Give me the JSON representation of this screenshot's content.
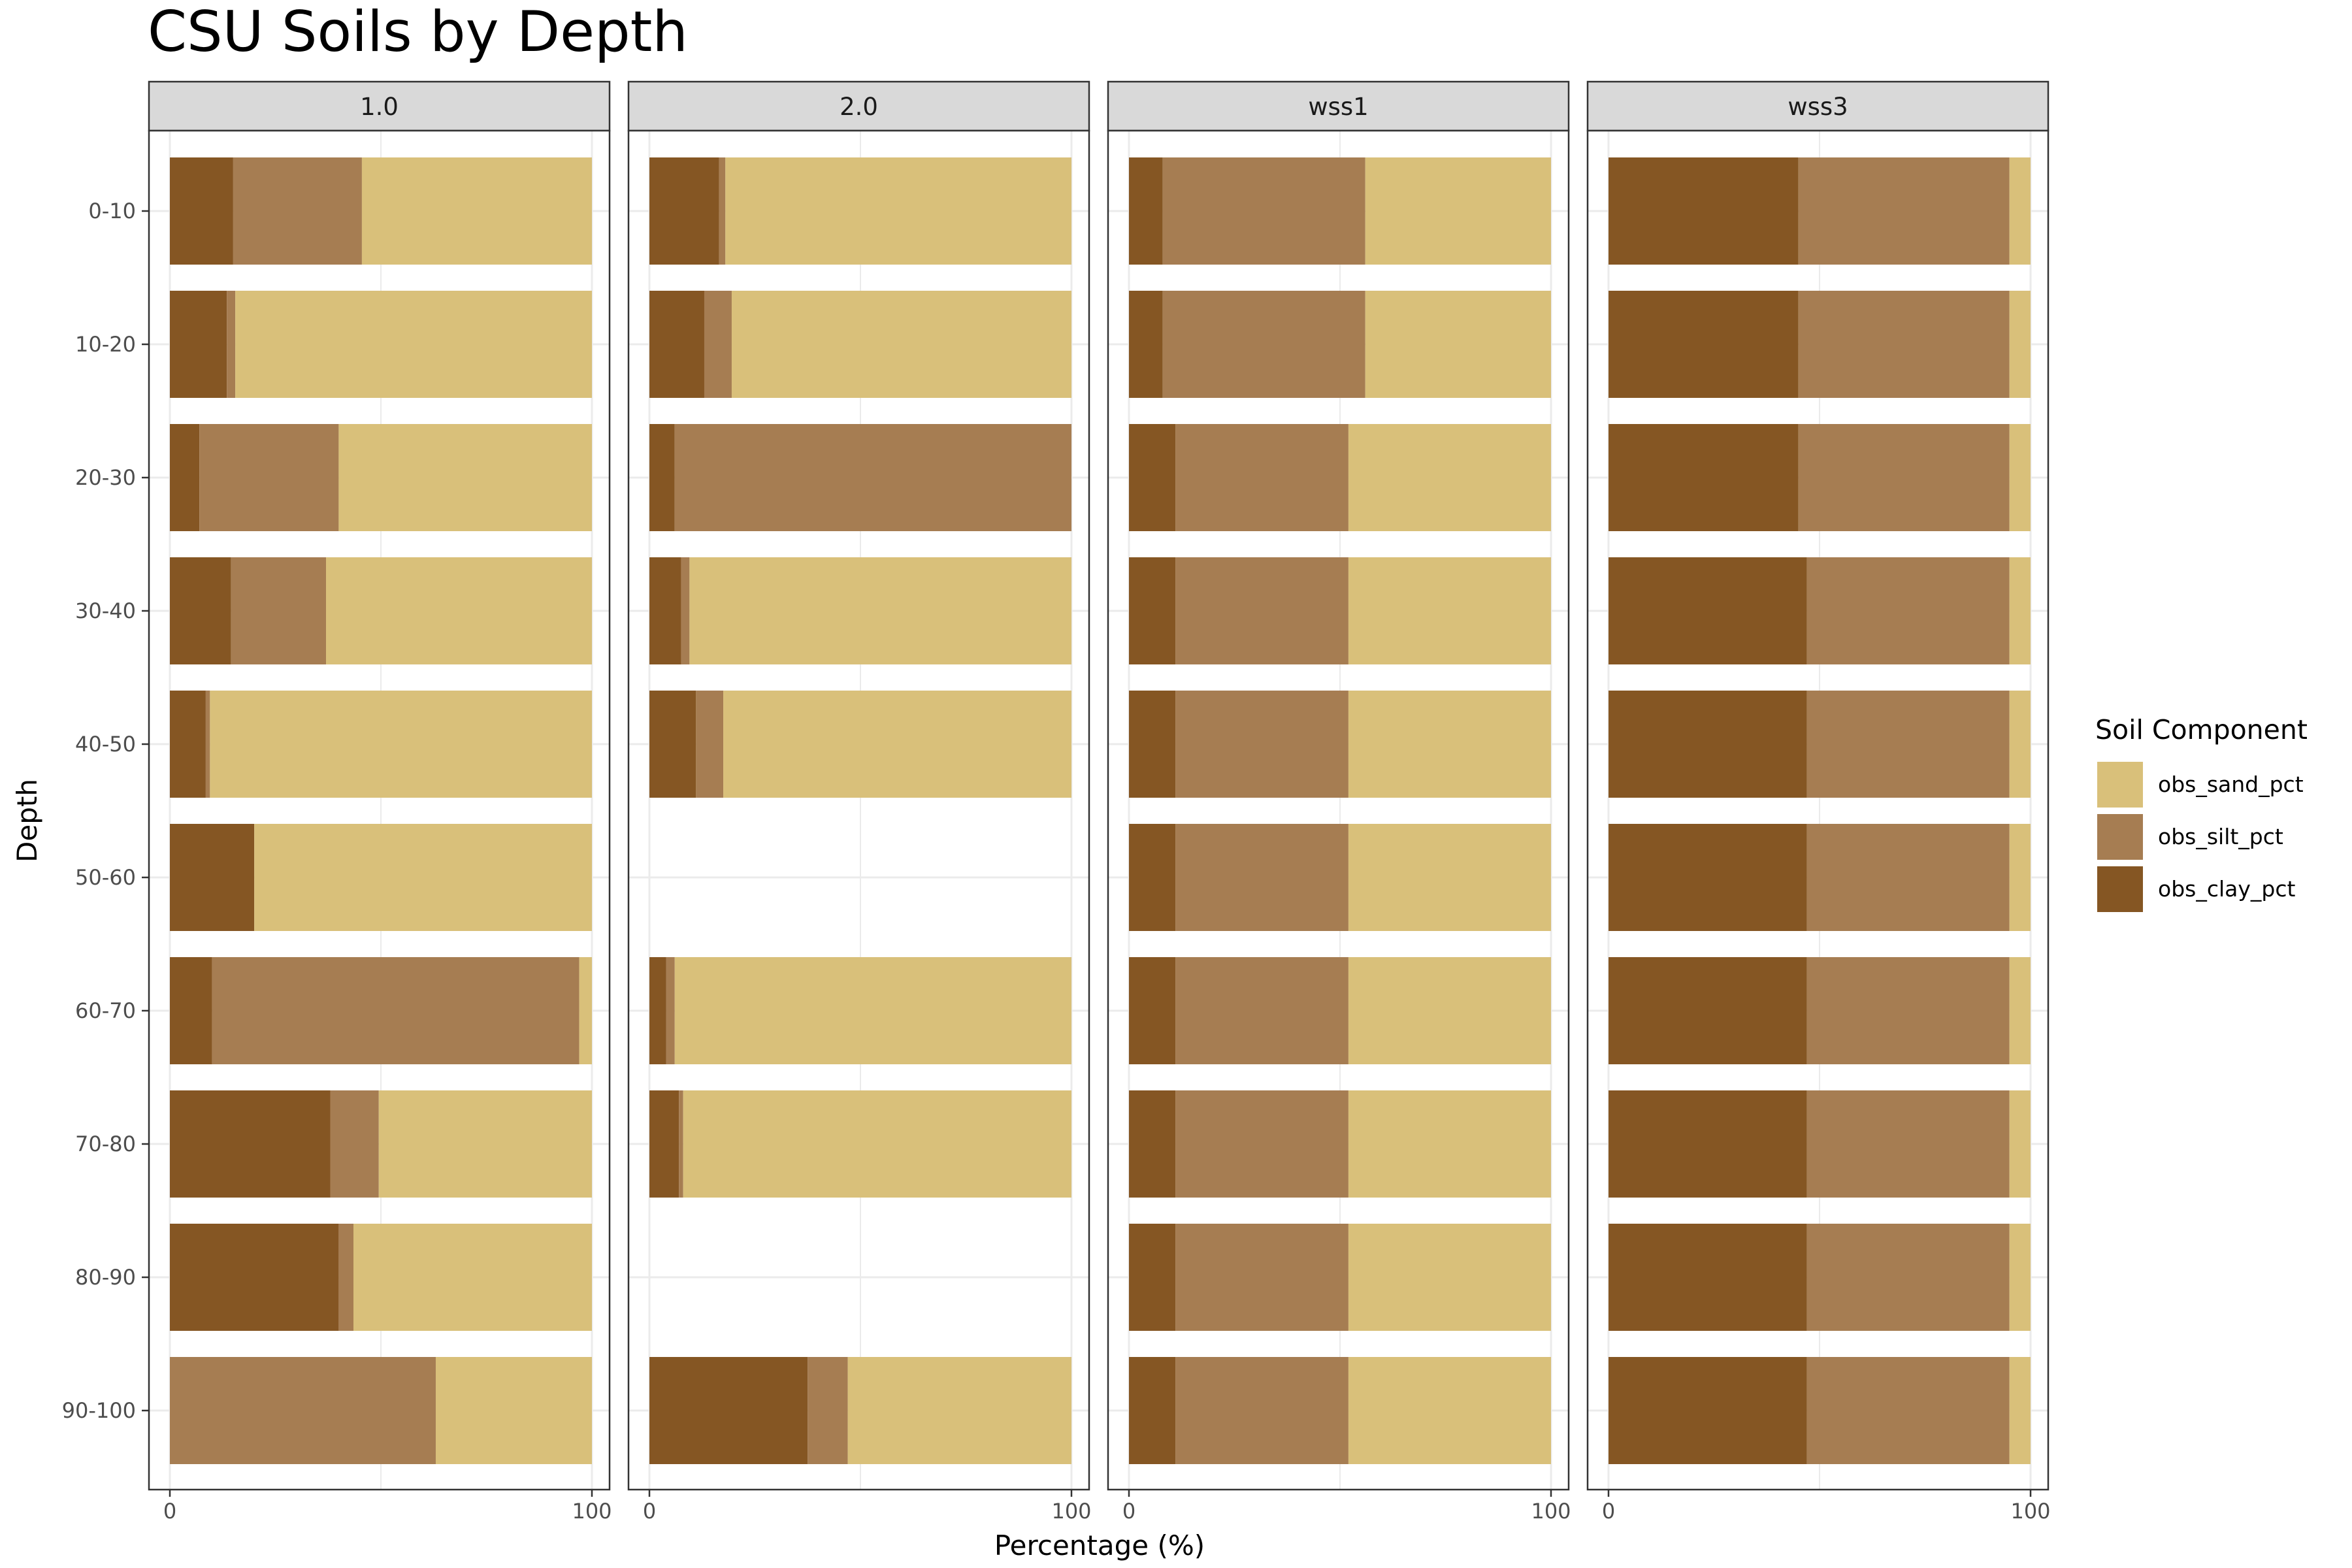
{
  "chart_data": {
    "type": "bar",
    "orientation": "horizontal",
    "stacked": true,
    "title": "CSU Soils by Depth",
    "xlabel": "Percentage (%)",
    "ylabel": "Depth",
    "xlim": [
      0,
      100
    ],
    "x_ticks": [
      0,
      100
    ],
    "grid": true,
    "legend_position": "right",
    "legend_title": "Soil Component",
    "categories": [
      "0-10",
      "10-20",
      "20-30",
      "30-40",
      "40-50",
      "50-60",
      "60-70",
      "70-80",
      "80-90",
      "90-100"
    ],
    "series": [
      {
        "name": "obs_clay_pct",
        "color": "#855623"
      },
      {
        "name": "obs_silt_pct",
        "color": "#a67d52"
      },
      {
        "name": "obs_sand_pct",
        "color": "#d9c07a"
      }
    ],
    "legend_order": [
      "obs_sand_pct",
      "obs_silt_pct",
      "obs_clay_pct"
    ],
    "panels": [
      {
        "label": "1.0",
        "bars": [
          {
            "depth": "0-10",
            "clay": 15,
            "silt": 30.5,
            "sand": 54.5
          },
          {
            "depth": "10-20",
            "clay": 13.5,
            "silt": 2,
            "sand": 84.5
          },
          {
            "depth": "20-30",
            "clay": 7,
            "silt": 33,
            "sand": 60
          },
          {
            "depth": "30-40",
            "clay": 14.5,
            "silt": 22.5,
            "sand": 63
          },
          {
            "depth": "40-50",
            "clay": 8.5,
            "silt": 1,
            "sand": 90.5
          },
          {
            "depth": "50-60",
            "clay": 20,
            "silt": 0,
            "sand": 80
          },
          {
            "depth": "60-70",
            "clay": 10,
            "silt": 87,
            "sand": 3
          },
          {
            "depth": "70-80",
            "clay": 38,
            "silt": 11.5,
            "sand": 50.5
          },
          {
            "depth": "80-90",
            "clay": 40,
            "silt": 3.5,
            "sand": 56.5
          },
          {
            "depth": "90-100",
            "clay": 0,
            "silt": 63,
            "sand": 37
          }
        ]
      },
      {
        "label": "2.0",
        "bars": [
          {
            "depth": "0-10",
            "clay": 16.5,
            "silt": 1.5,
            "sand": 82
          },
          {
            "depth": "10-20",
            "clay": 13,
            "silt": 6.5,
            "sand": 80.5
          },
          {
            "depth": "20-30",
            "clay": 6,
            "silt": 94,
            "sand": 0
          },
          {
            "depth": "30-40",
            "clay": 7.5,
            "silt": 2,
            "sand": 90.5
          },
          {
            "depth": "40-50",
            "clay": 11,
            "silt": 6.5,
            "sand": 82.5
          },
          {
            "depth": "60-70",
            "clay": 4,
            "silt": 2,
            "sand": 94
          },
          {
            "depth": "70-80",
            "clay": 7,
            "silt": 1,
            "sand": 92
          },
          {
            "depth": "90-100",
            "clay": 37.5,
            "silt": 9.5,
            "sand": 53
          }
        ]
      },
      {
        "label": "wss1",
        "bars": [
          {
            "depth": "0-10",
            "clay": 8,
            "silt": 48,
            "sand": 44
          },
          {
            "depth": "10-20",
            "clay": 8,
            "silt": 48,
            "sand": 44
          },
          {
            "depth": "20-30",
            "clay": 11,
            "silt": 41,
            "sand": 48
          },
          {
            "depth": "30-40",
            "clay": 11,
            "silt": 41,
            "sand": 48
          },
          {
            "depth": "40-50",
            "clay": 11,
            "silt": 41,
            "sand": 48
          },
          {
            "depth": "50-60",
            "clay": 11,
            "silt": 41,
            "sand": 48
          },
          {
            "depth": "60-70",
            "clay": 11,
            "silt": 41,
            "sand": 48
          },
          {
            "depth": "70-80",
            "clay": 11,
            "silt": 41,
            "sand": 48
          },
          {
            "depth": "80-90",
            "clay": 11,
            "silt": 41,
            "sand": 48
          },
          {
            "depth": "90-100",
            "clay": 11,
            "silt": 41,
            "sand": 48
          }
        ]
      },
      {
        "label": "wss3",
        "bars": [
          {
            "depth": "0-10",
            "clay": 45,
            "silt": 50,
            "sand": 5
          },
          {
            "depth": "10-20",
            "clay": 45,
            "silt": 50,
            "sand": 5
          },
          {
            "depth": "20-30",
            "clay": 45,
            "silt": 50,
            "sand": 5
          },
          {
            "depth": "30-40",
            "clay": 47,
            "silt": 48,
            "sand": 5
          },
          {
            "depth": "40-50",
            "clay": 47,
            "silt": 48,
            "sand": 5
          },
          {
            "depth": "50-60",
            "clay": 47,
            "silt": 48,
            "sand": 5
          },
          {
            "depth": "60-70",
            "clay": 47,
            "silt": 48,
            "sand": 5
          },
          {
            "depth": "70-80",
            "clay": 47,
            "silt": 48,
            "sand": 5
          },
          {
            "depth": "80-90",
            "clay": 47,
            "silt": 48,
            "sand": 5
          },
          {
            "depth": "90-100",
            "clay": 47,
            "silt": 48,
            "sand": 5
          }
        ]
      }
    ]
  }
}
